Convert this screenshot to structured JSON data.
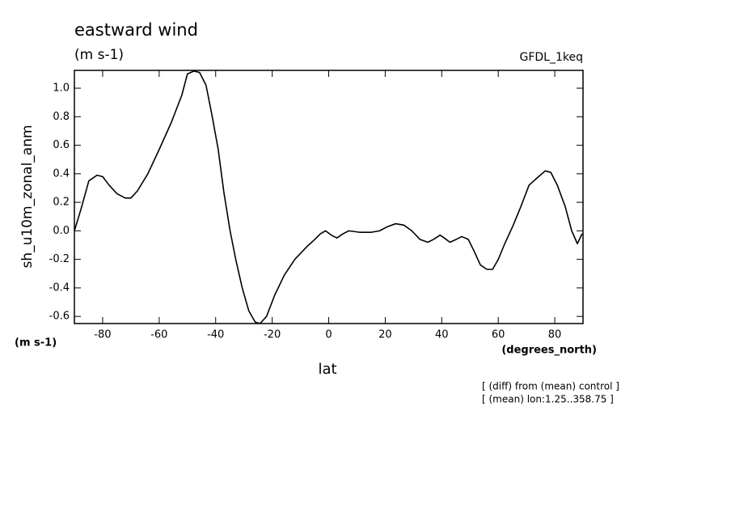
{
  "chart_data": {
    "type": "line",
    "title": "eastward wind",
    "subtitle": "(m s-1)",
    "source_label": "GFDL_1keq",
    "y_label": "sh_u10m_zonal_anm",
    "y_units": "(m s-1)",
    "x_label": "lat",
    "x_units": "(degrees_north)",
    "notes": [
      "[ (diff) from (mean) control ]",
      "[ (mean) lon:1.25..358.75 ]"
    ],
    "xlim": [
      -90,
      90
    ],
    "ylim": [
      -0.65,
      1.125
    ],
    "xticks": [
      -80,
      -60,
      -40,
      -20,
      0,
      20,
      40,
      60,
      80
    ],
    "yticks": [
      -0.6,
      -0.4,
      -0.2,
      {
        "value": 0,
        "label": "0.0"
      },
      0.2,
      0.4,
      0.6,
      0.8,
      {
        "value": 1,
        "label": "1.0"
      }
    ],
    "grid": false,
    "series": [
      {
        "color": "#000000",
        "x": [
          -90,
          -87.7,
          -84.9,
          -82,
          -80,
          -77.7,
          -74.9,
          -72,
          -70,
          -67.7,
          -64,
          -60,
          -55.7,
          -52,
          -50,
          -47.7,
          -45.7,
          -43.4,
          -41.4,
          -39.1,
          -37.1,
          -34.9,
          -32.9,
          -30.6,
          -28.3,
          -26,
          -24.3,
          -22,
          -19.1,
          -15.7,
          -12,
          -7.7,
          -4.9,
          -2.9,
          -1.1,
          0.9,
          2.9,
          5.1,
          7.1,
          10.9,
          15.1,
          18,
          20.9,
          23.7,
          26.6,
          29.4,
          32.3,
          35.1,
          37.1,
          39.4,
          40.9,
          42.9,
          45.1,
          47.1,
          49.4,
          51.4,
          53.7,
          56,
          58,
          60,
          62.3,
          65.1,
          68,
          70.9,
          73.7,
          76.6,
          78.6,
          80.9,
          83.7,
          86,
          88,
          89.7
        ],
        "values": [
          0,
          0.15,
          0.35,
          0.39,
          0.38,
          0.32,
          0.26,
          0.23,
          0.23,
          0.28,
          0.4,
          0.57,
          0.76,
          0.95,
          1.1,
          1.12,
          1.11,
          1.02,
          0.82,
          0.57,
          0.27,
          0,
          -0.2,
          -0.4,
          -0.56,
          -0.64,
          -0.65,
          -0.6,
          -0.45,
          -0.31,
          -0.2,
          -0.11,
          -0.06,
          -0.02,
          0,
          -0.03,
          -0.05,
          -0.02,
          0,
          -0.01,
          -0.01,
          0,
          0.03,
          0.05,
          0.04,
          0,
          -0.06,
          -0.08,
          -0.06,
          -0.03,
          -0.05,
          -0.08,
          -0.06,
          -0.04,
          -0.06,
          -0.14,
          -0.24,
          -0.27,
          -0.27,
          -0.2,
          -0.09,
          0.03,
          0.17,
          0.32,
          0.37,
          0.42,
          0.41,
          0.32,
          0.17,
          0,
          -0.09,
          -0.02
        ]
      }
    ]
  }
}
